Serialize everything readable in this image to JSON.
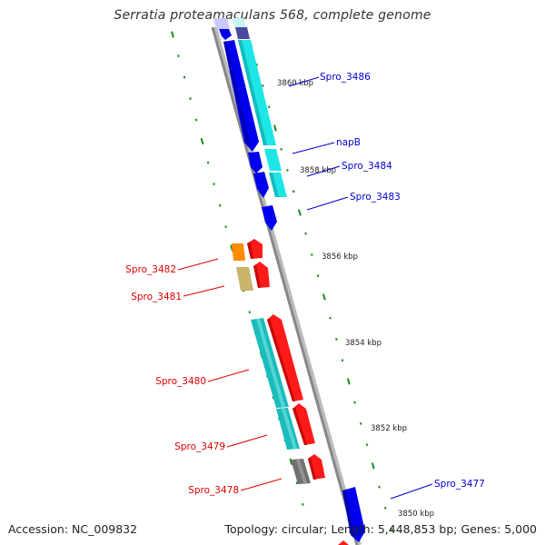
{
  "title": "Serratia proteamaculans 568, complete genome",
  "footer": {
    "accession_label": "Accession:",
    "accession": "NC_009832",
    "topology_label": "Topology:",
    "topology": "circular;",
    "length_label": "Length:",
    "length": "5,448,853 bp;",
    "genes_label": "Genes:",
    "genes": "5,000"
  },
  "colors": {
    "backbone": "#888888",
    "tick_marks": "#1d8a1d",
    "forward_labels": "#0000cc",
    "reverse_labels": "#dd0000",
    "blue": "#0000ee",
    "cyan": "#1fe6e6",
    "red": "#ff1a1a",
    "teal": "#1bbcbc",
    "orange": "#ff8c00",
    "khaki": "#c8b46a",
    "gray": "#707070"
  },
  "scale_labels": [
    "3860 kbp",
    "3858 kbp",
    "3856 kbp",
    "3854 kbp",
    "3852 kbp",
    "3850 kbp"
  ],
  "gene_labels": [
    {
      "text": "Spro_3486",
      "strand": "forward"
    },
    {
      "text": "napB",
      "strand": "forward"
    },
    {
      "text": "Spro_3484",
      "strand": "forward"
    },
    {
      "text": "Spro_3483",
      "strand": "forward"
    },
    {
      "text": "Spro_3482",
      "strand": "reverse"
    },
    {
      "text": "Spro_3481",
      "strand": "reverse"
    },
    {
      "text": "Spro_3480",
      "strand": "reverse"
    },
    {
      "text": "Spro_3479",
      "strand": "reverse"
    },
    {
      "text": "Spro_3478",
      "strand": "reverse"
    },
    {
      "text": "Spro_3477",
      "strand": "forward"
    }
  ],
  "feature_icons": [
    "gene-arrow-icon",
    "cds-bar-icon",
    "scale-tick-icon"
  ]
}
